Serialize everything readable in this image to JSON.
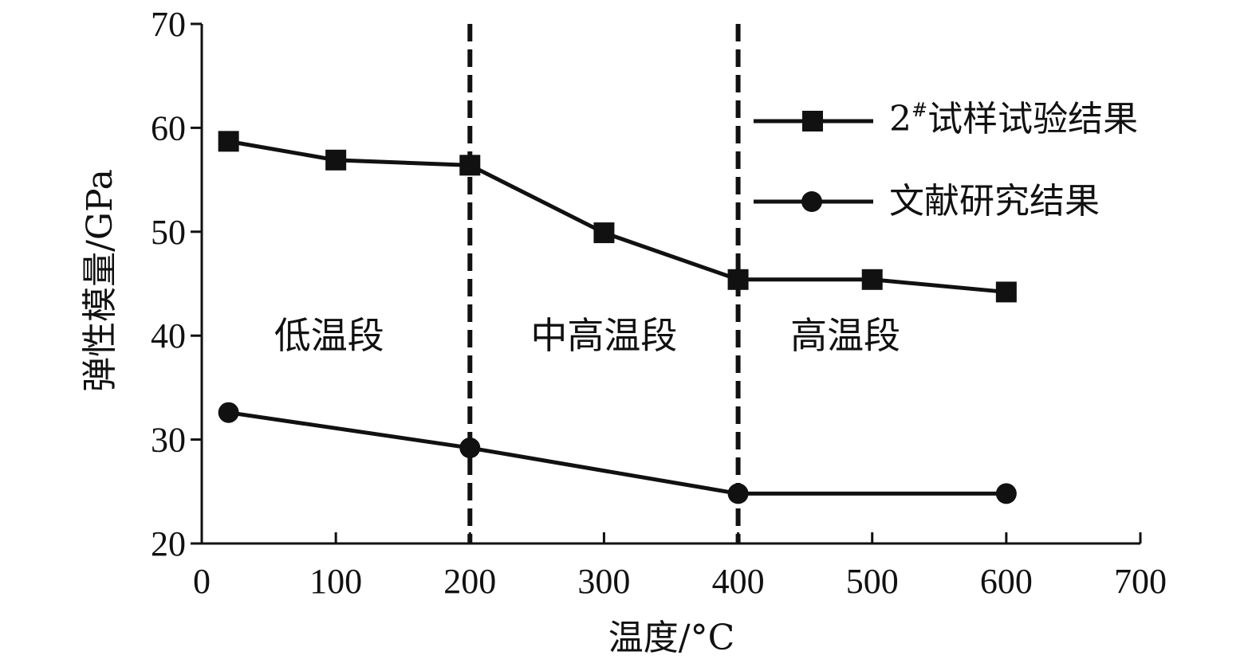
{
  "chart_data": {
    "type": "line",
    "xlabel": "温度/°C",
    "ylabel": "弹性模量/GPa",
    "xlim": [
      0,
      700
    ],
    "ylim": [
      20,
      70
    ],
    "xticks": [
      0,
      100,
      200,
      300,
      400,
      500,
      600,
      700
    ],
    "yticks": [
      20,
      30,
      40,
      50,
      60,
      70
    ],
    "grid": false,
    "legend_position": "top-right",
    "series": [
      {
        "name_prefix": "2",
        "name_superscript": "#",
        "name_suffix": "试样试验结果",
        "marker": "square",
        "x": [
          20,
          100,
          200,
          300,
          400,
          500,
          600
        ],
        "y": [
          58.7,
          56.9,
          56.4,
          49.9,
          45.4,
          45.4,
          44.2
        ]
      },
      {
        "name": "文献研究结果",
        "marker": "circle",
        "x": [
          20,
          200,
          400,
          600
        ],
        "y": [
          32.6,
          29.2,
          24.8,
          24.8
        ]
      }
    ],
    "vertical_lines": [
      200,
      400
    ],
    "regions": [
      {
        "label": "低温段",
        "x": 95,
        "y": 40
      },
      {
        "label": "中高温段",
        "x": 300,
        "y": 40
      },
      {
        "label": "高温段",
        "x": 480,
        "y": 40
      }
    ]
  }
}
